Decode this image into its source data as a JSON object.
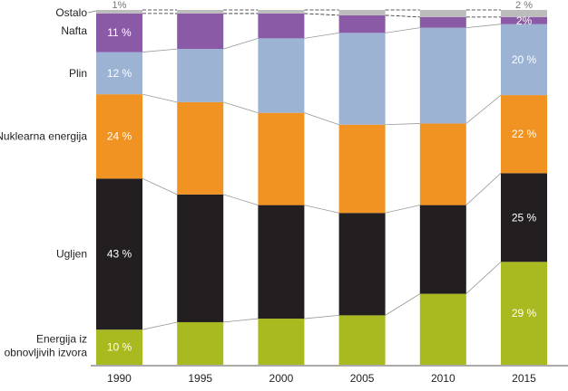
{
  "chart_data": {
    "type": "bar",
    "stacked": "percent",
    "title": "",
    "xlabel": "",
    "ylabel": "",
    "ylim": [
      0,
      100
    ],
    "grid": false,
    "legend": "left (category labels beside first bar)",
    "categories": [
      "1990",
      "1995",
      "2000",
      "2005",
      "2010",
      "2015"
    ],
    "series": [
      {
        "name": "Energija iz obnovljivih izvora",
        "name_lines": [
          "Energija iz",
          "obnovljivih izvora"
        ],
        "color": "#a9b920",
        "values": [
          10,
          12,
          13,
          14,
          20,
          29
        ],
        "data_labels": [
          "10 %",
          "",
          "",
          "",
          "",
          "29 %"
        ]
      },
      {
        "name": "Ugljen",
        "name_lines": [
          "Ugljen"
        ],
        "color": "#231f20",
        "values": [
          43,
          36,
          32,
          29,
          25,
          25
        ],
        "data_labels": [
          "43 %",
          "",
          "",
          "",
          "",
          "25 %"
        ]
      },
      {
        "name": "Nuklearna energija",
        "name_lines": [
          "Nuklearna energija"
        ],
        "color": "#f09323",
        "values": [
          24,
          26,
          26,
          25,
          23,
          22
        ],
        "data_labels": [
          "24 %",
          "",
          "",
          "",
          "",
          "22 %"
        ]
      },
      {
        "name": "Plin",
        "name_lines": [
          "Plin"
        ],
        "color": "#9cb3d3",
        "values": [
          12,
          15,
          21,
          26,
          27,
          20
        ],
        "data_labels": [
          "12 %",
          "",
          "",
          "",
          "",
          "20 %"
        ]
      },
      {
        "name": "Nafta",
        "name_lines": [
          "Nafta"
        ],
        "color": "#8a5aa6",
        "values": [
          11,
          10,
          7,
          5,
          3,
          2
        ],
        "data_labels": [
          "11 %",
          "",
          "",
          "",
          "",
          "2%"
        ]
      },
      {
        "name": "Ostalo",
        "name_lines": [
          "Ostalo"
        ],
        "color": "#bcbcbc",
        "values": [
          1,
          1,
          1,
          1.5,
          2,
          2
        ],
        "data_labels": [
          "1%",
          "",
          "",
          "",
          "",
          "2 %"
        ]
      }
    ]
  }
}
